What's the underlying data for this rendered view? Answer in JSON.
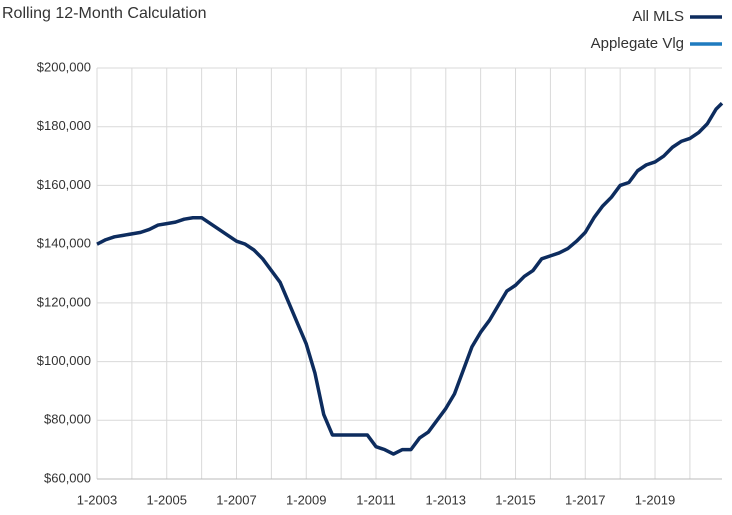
{
  "chart_data": {
    "type": "line",
    "title": "Rolling 12-Month Calculation",
    "x": [
      2003,
      2003.25,
      2003.5,
      2003.75,
      2004,
      2004.25,
      2004.5,
      2004.75,
      2005,
      2005.25,
      2005.5,
      2005.75,
      2006,
      2006.25,
      2006.5,
      2006.75,
      2007,
      2007.25,
      2007.5,
      2007.75,
      2008,
      2008.25,
      2008.5,
      2008.75,
      2009,
      2009.25,
      2009.5,
      2009.75,
      2010,
      2010.25,
      2010.5,
      2010.75,
      2011,
      2011.25,
      2011.5,
      2011.75,
      2012,
      2012.25,
      2012.5,
      2012.75,
      2013,
      2013.25,
      2013.5,
      2013.75,
      2014,
      2014.25,
      2014.5,
      2014.75,
      2015,
      2015.25,
      2015.5,
      2015.75,
      2016,
      2016.25,
      2016.5,
      2016.75,
      2017,
      2017.25,
      2017.5,
      2017.75,
      2018,
      2018.25,
      2018.5,
      2018.75,
      2019,
      2019.25,
      2019.5,
      2019.75,
      2020,
      2020.25,
      2020.5,
      2020.75,
      2020.92
    ],
    "series": [
      {
        "name": "All MLS",
        "color": "#0d2c5e",
        "values": [
          140000,
          141500,
          142500,
          143000,
          143500,
          144000,
          145000,
          146500,
          147000,
          147500,
          148500,
          149000,
          149000,
          147000,
          145000,
          143000,
          141000,
          140000,
          138000,
          135000,
          131000,
          127000,
          120000,
          113000,
          106000,
          96000,
          82000,
          75000,
          75000,
          75000,
          75000,
          75000,
          71000,
          70000,
          68500,
          70000,
          70000,
          74000,
          76000,
          80000,
          84000,
          89000,
          97000,
          105000,
          110000,
          114000,
          119000,
          124000,
          126000,
          129000,
          131000,
          135000,
          136000,
          137000,
          138500,
          141000,
          144000,
          149000,
          153000,
          156000,
          160000,
          161000,
          165000,
          167000,
          168000,
          170000,
          173000,
          175000,
          176000,
          178000,
          181000,
          186000,
          188000
        ]
      },
      {
        "name": "Applegate Vlg",
        "color": "#1f7bbf",
        "values": [
          null,
          null,
          null,
          null,
          null,
          null,
          null,
          null,
          null,
          null,
          null,
          null,
          null,
          null,
          null,
          null,
          null,
          null,
          null,
          null,
          null,
          null,
          null,
          null,
          null,
          null,
          null,
          null,
          null,
          null,
          null,
          null,
          null,
          null,
          null,
          null,
          null,
          null,
          null,
          null,
          null,
          null,
          null,
          null,
          null,
          null,
          null,
          null,
          null,
          null,
          null,
          null,
          null,
          null,
          null,
          null,
          null,
          null,
          null,
          null,
          null,
          null,
          null,
          null,
          null,
          null,
          null,
          null,
          null,
          null,
          null,
          null,
          null
        ]
      }
    ],
    "xlim": [
      2003,
      2020.92
    ],
    "xticks": [
      {
        "value": 2003,
        "label": "1-2003"
      },
      {
        "value": 2005,
        "label": "1-2005"
      },
      {
        "value": 2007,
        "label": "1-2007"
      },
      {
        "value": 2009,
        "label": "1-2009"
      },
      {
        "value": 2011,
        "label": "1-2011"
      },
      {
        "value": 2013,
        "label": "1-2013"
      },
      {
        "value": 2015,
        "label": "1-2015"
      },
      {
        "value": 2017,
        "label": "1-2017"
      },
      {
        "value": 2019,
        "label": "1-2019"
      }
    ],
    "xminor": [
      2004,
      2006,
      2008,
      2010,
      2012,
      2014,
      2016,
      2018,
      2020
    ],
    "ylim": [
      60000,
      200000
    ],
    "yticks": [
      {
        "value": 60000,
        "label": "$60,000"
      },
      {
        "value": 80000,
        "label": "$80,000"
      },
      {
        "value": 100000,
        "label": "$100,000"
      },
      {
        "value": 120000,
        "label": "$120,000"
      },
      {
        "value": 140000,
        "label": "$140,000"
      },
      {
        "value": 160000,
        "label": "$160,000"
      },
      {
        "value": 180000,
        "label": "$180,000"
      },
      {
        "value": 200000,
        "label": "$200,000"
      }
    ],
    "grid": true,
    "legend": "top-right"
  }
}
